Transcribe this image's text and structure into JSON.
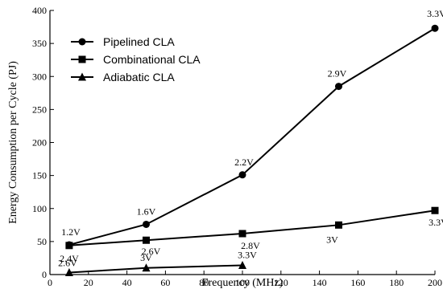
{
  "chart_data": {
    "type": "line",
    "xlabel": "Frequency (MHz)",
    "ylabel": "Energy Consumption per Cycle (PJ)",
    "xlim": [
      0,
      200
    ],
    "ylim": [
      0,
      400
    ],
    "xticks": [
      0,
      20,
      40,
      60,
      80,
      100,
      120,
      140,
      160,
      180,
      200
    ],
    "yticks": [
      0,
      50,
      100,
      150,
      200,
      250,
      300,
      350,
      400
    ],
    "grid": false,
    "legend_position": "top-left",
    "series": [
      {
        "name": "Pipelined CLA",
        "marker": "circle",
        "x": [
          10,
          50,
          100,
          150,
          200
        ],
        "y": [
          45,
          76,
          151,
          285,
          373
        ],
        "labels": [
          "1.2V",
          "1.6V",
          "2.2V",
          "2.9V",
          "3.3V"
        ]
      },
      {
        "name": "Combinational CLA",
        "marker": "square",
        "x": [
          10,
          50,
          100,
          150,
          200
        ],
        "y": [
          44,
          52,
          62,
          75,
          97
        ],
        "labels": [
          "2.4V",
          "2.6V",
          "2.8V",
          "3V",
          "3.3V"
        ]
      },
      {
        "name": "Adiabatic CLA",
        "marker": "triangle",
        "x": [
          10,
          50,
          100
        ],
        "y": [
          3,
          10,
          14
        ],
        "labels": [
          "2.6V",
          "3V",
          "3.3V"
        ]
      }
    ]
  }
}
